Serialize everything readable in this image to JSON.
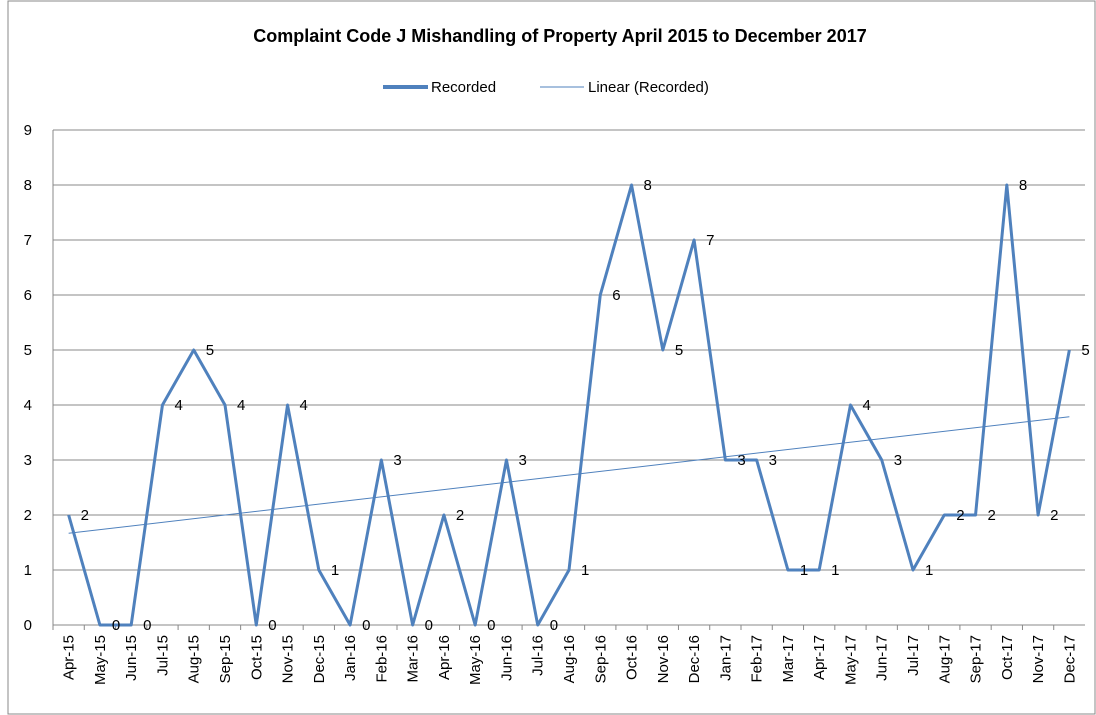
{
  "chart_data": {
    "type": "line",
    "title": "Complaint  Code J Mishandling of Property April 2015 to December 2017",
    "categories": [
      "Apr-15",
      "May-15",
      "Jun-15",
      "Jul-15",
      "Aug-15",
      "Sep-15",
      "Oct-15",
      "Nov-15",
      "Dec-15",
      "Jan-16",
      "Feb-16",
      "Mar-16",
      "Apr-16",
      "May-16",
      "Jun-16",
      "Jul-16",
      "Aug-16",
      "Sep-16",
      "Oct-16",
      "Nov-16",
      "Dec-16",
      "Jan-17",
      "Feb-17",
      "Mar-17",
      "Apr-17",
      "May-17",
      "Jun-17",
      "Jul-17",
      "Aug-17",
      "Sep-17",
      "Oct-17",
      "Nov-17",
      "Dec-17"
    ],
    "series": [
      {
        "name": "Recorded",
        "color": "#4f81bd",
        "values": [
          2,
          0,
          0,
          4,
          5,
          4,
          0,
          4,
          1,
          0,
          3,
          0,
          2,
          0,
          3,
          0,
          1,
          6,
          8,
          5,
          7,
          3,
          3,
          1,
          1,
          4,
          3,
          1,
          2,
          2,
          8,
          2,
          5
        ]
      }
    ],
    "trendline": {
      "name": "Linear (Recorded)",
      "color": "#4f81bd"
    },
    "ylim": [
      0,
      9
    ],
    "yticks": [
      0,
      1,
      2,
      3,
      4,
      5,
      6,
      7,
      8,
      9
    ],
    "grid": true,
    "legend": "top"
  }
}
